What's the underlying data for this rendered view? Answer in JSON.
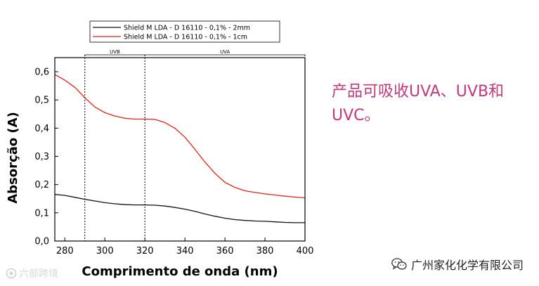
{
  "side_note": "产品可吸收UVA、UVB和UVC。",
  "footer": {
    "brand": "广州家化化学有限公司",
    "icon": "wechat-icon"
  },
  "watermark": {
    "text": "六部跨境",
    "icon": "watermark-logo"
  },
  "chart_data": {
    "type": "line",
    "xlabel": "Comprimento de onda (nm)",
    "ylabel": "Absorção (A)",
    "xlim": [
      275,
      400
    ],
    "ylim": [
      0.0,
      0.65
    ],
    "xticks": [
      280,
      300,
      320,
      340,
      360,
      380,
      400
    ],
    "yticks": [
      "0,0",
      "0,1",
      "0,2",
      "0,3",
      "0,4",
      "0,5",
      "0,6"
    ],
    "grid": false,
    "legend_position": "top-center",
    "regions": [
      {
        "label": "UVB",
        "from": 290,
        "to": 320
      },
      {
        "label": "UVA",
        "from": 320,
        "to": 400
      }
    ],
    "series": [
      {
        "name": "Shield M LDA - D 16110 - 0,1%  - 2mm",
        "color": "#111111",
        "points": [
          [
            275,
            0.165
          ],
          [
            280,
            0.162
          ],
          [
            285,
            0.155
          ],
          [
            290,
            0.148
          ],
          [
            295,
            0.142
          ],
          [
            300,
            0.136
          ],
          [
            305,
            0.132
          ],
          [
            310,
            0.129
          ],
          [
            315,
            0.128
          ],
          [
            320,
            0.128
          ],
          [
            325,
            0.127
          ],
          [
            330,
            0.124
          ],
          [
            335,
            0.119
          ],
          [
            340,
            0.113
          ],
          [
            345,
            0.105
          ],
          [
            350,
            0.096
          ],
          [
            355,
            0.088
          ],
          [
            360,
            0.081
          ],
          [
            365,
            0.076
          ],
          [
            370,
            0.073
          ],
          [
            375,
            0.071
          ],
          [
            380,
            0.07
          ],
          [
            385,
            0.068
          ],
          [
            390,
            0.066
          ],
          [
            395,
            0.065
          ],
          [
            400,
            0.065
          ]
        ]
      },
      {
        "name": "Shield M LDA - D 16110 - 0,1%  - 1cm",
        "color": "#e0231c",
        "points": [
          [
            275,
            0.59
          ],
          [
            280,
            0.57
          ],
          [
            285,
            0.545
          ],
          [
            290,
            0.508
          ],
          [
            295,
            0.475
          ],
          [
            300,
            0.455
          ],
          [
            305,
            0.443
          ],
          [
            310,
            0.435
          ],
          [
            315,
            0.432
          ],
          [
            320,
            0.432
          ],
          [
            325,
            0.431
          ],
          [
            330,
            0.42
          ],
          [
            335,
            0.4
          ],
          [
            340,
            0.368
          ],
          [
            345,
            0.325
          ],
          [
            350,
            0.28
          ],
          [
            355,
            0.24
          ],
          [
            360,
            0.208
          ],
          [
            365,
            0.19
          ],
          [
            370,
            0.178
          ],
          [
            375,
            0.172
          ],
          [
            380,
            0.167
          ],
          [
            385,
            0.163
          ],
          [
            390,
            0.159
          ],
          [
            395,
            0.156
          ],
          [
            400,
            0.153
          ]
        ]
      }
    ]
  }
}
